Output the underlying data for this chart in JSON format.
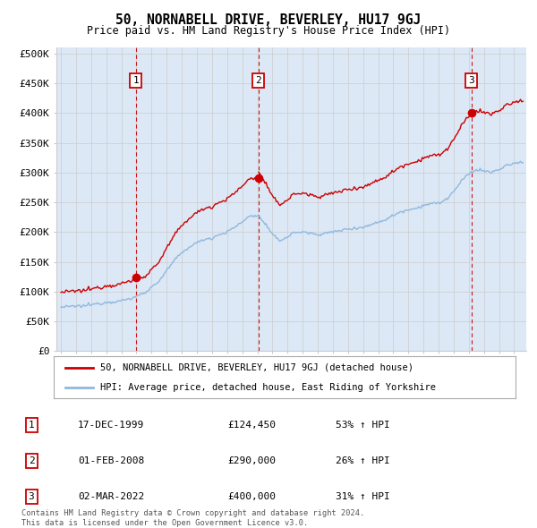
{
  "title": "50, NORNABELL DRIVE, BEVERLEY, HU17 9GJ",
  "subtitle": "Price paid vs. HM Land Registry's House Price Index (HPI)",
  "ylabel_ticks": [
    "£0",
    "£50K",
    "£100K",
    "£150K",
    "£200K",
    "£250K",
    "£300K",
    "£350K",
    "£400K",
    "£450K",
    "£500K"
  ],
  "ytick_values": [
    0,
    50000,
    100000,
    150000,
    200000,
    250000,
    300000,
    350000,
    400000,
    450000,
    500000
  ],
  "ylim": [
    0,
    510000
  ],
  "xlim_start": 1994.7,
  "xlim_end": 2025.8,
  "sale_color": "#cc0000",
  "hpi_color": "#90b8e0",
  "vline_color": "#cc0000",
  "sale_dates": [
    1999.96,
    2008.08,
    2022.17
  ],
  "sale_prices": [
    124450,
    290000,
    400000
  ],
  "sale_labels": [
    "1",
    "2",
    "3"
  ],
  "legend_sale_label": "50, NORNABELL DRIVE, BEVERLEY, HU17 9GJ (detached house)",
  "legend_hpi_label": "HPI: Average price, detached house, East Riding of Yorkshire",
  "table_data": [
    [
      "1",
      "17-DEC-1999",
      "£124,450",
      "53% ↑ HPI"
    ],
    [
      "2",
      "01-FEB-2008",
      "£290,000",
      "26% ↑ HPI"
    ],
    [
      "3",
      "02-MAR-2022",
      "£400,000",
      "31% ↑ HPI"
    ]
  ],
  "footnote": "Contains HM Land Registry data © Crown copyright and database right 2024.\nThis data is licensed under the Open Government Licence v3.0.",
  "background_color": "#dce8f5",
  "plot_bg_color": "#ffffff",
  "grid_color": "#cccccc"
}
